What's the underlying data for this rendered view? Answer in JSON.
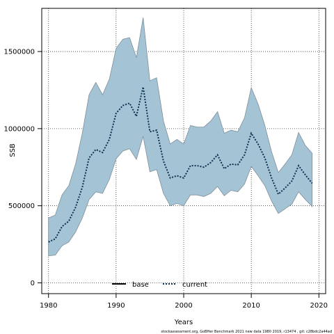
{
  "chart_data": {
    "type": "area",
    "xlabel": "Years",
    "ylabel": "SSB",
    "xlim": [
      1979,
      2021
    ],
    "ylim": [
      -70000,
      1780000
    ],
    "x_ticks": [
      1980,
      1990,
      2000,
      2010,
      2020
    ],
    "y_ticks": [
      0,
      500000,
      1000000,
      1500000
    ],
    "grid": true,
    "legend_placement": "bottom-center",
    "legend": [
      {
        "label": "base",
        "style": "solid",
        "color": "#000000"
      },
      {
        "label": "current",
        "style": "dotted",
        "color": "#0b3050"
      }
    ],
    "footnote": "stockassessment.org, GoBHer Benchmark 2021 new data 1980 2019, r13474 , git: c28bdc2a44ad",
    "band_color": "#a4c4d6",
    "band_edge_color": "#7d8e99",
    "x": [
      1980,
      1981,
      1982,
      1983,
      1984,
      1985,
      1986,
      1987,
      1988,
      1989,
      1990,
      1991,
      1992,
      1993,
      1994,
      1995,
      1996,
      1997,
      1998,
      1999,
      2000,
      2001,
      2002,
      2003,
      2004,
      2005,
      2006,
      2007,
      2008,
      2009,
      2010,
      2011,
      2012,
      2013,
      2014,
      2015,
      2016,
      2017,
      2018,
      2019
    ],
    "series": [
      {
        "name": "current",
        "values": [
          265000,
          285000,
          365000,
          400000,
          490000,
          620000,
          810000,
          865000,
          845000,
          930000,
          1100000,
          1150000,
          1165000,
          1080000,
          1270000,
          980000,
          990000,
          790000,
          680000,
          695000,
          680000,
          760000,
          760000,
          750000,
          780000,
          830000,
          740000,
          770000,
          765000,
          830000,
          970000,
          900000,
          810000,
          680000,
          575000,
          615000,
          660000,
          760000,
          700000,
          645000
        ],
        "upper": [
          420000,
          440000,
          570000,
          630000,
          770000,
          970000,
          1220000,
          1300000,
          1220000,
          1320000,
          1520000,
          1580000,
          1590000,
          1460000,
          1720000,
          1310000,
          1330000,
          1050000,
          900000,
          930000,
          900000,
          1020000,
          1010000,
          1010000,
          1050000,
          1110000,
          970000,
          990000,
          980000,
          1070000,
          1265000,
          1160000,
          1020000,
          850000,
          715000,
          770000,
          830000,
          975000,
          890000,
          840000
        ],
        "lower": [
          175000,
          180000,
          240000,
          265000,
          330000,
          420000,
          540000,
          590000,
          580000,
          670000,
          805000,
          855000,
          870000,
          800000,
          950000,
          720000,
          735000,
          580000,
          500000,
          515000,
          500000,
          570000,
          570000,
          560000,
          580000,
          625000,
          565000,
          600000,
          590000,
          640000,
          755000,
          695000,
          630000,
          530000,
          450000,
          480000,
          510000,
          590000,
          540000,
          495000
        ]
      }
    ]
  }
}
